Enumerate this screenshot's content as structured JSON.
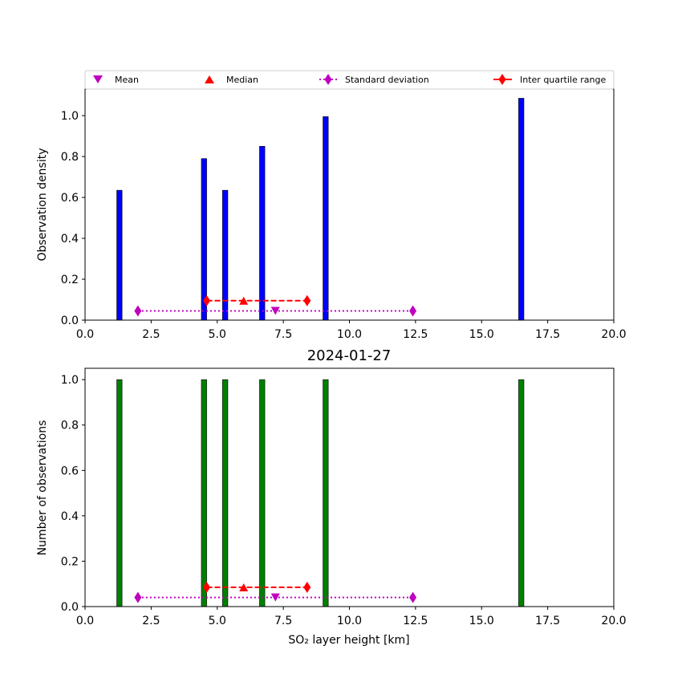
{
  "legend": {
    "mean_label": "Mean",
    "median_label": "Median",
    "std_label": "Standard deviation",
    "iqr_label": "Inter quartile range"
  },
  "colors": {
    "density_bars": "#0000ff",
    "count_bars": "#008000",
    "mean": "#bf00bf",
    "median": "#ff0000",
    "std": "#bf00bf",
    "iqr": "#ff0000"
  },
  "chart_data": [
    {
      "type": "bar",
      "title": "",
      "xlabel": "",
      "ylabel": "Observation density",
      "xlim": [
        0,
        20
      ],
      "ylim": [
        0,
        1.13
      ],
      "xticks": [
        "0.0",
        "2.5",
        "5.0",
        "7.5",
        "10.0",
        "12.5",
        "15.0",
        "17.5",
        "20.0"
      ],
      "yticks": [
        "0.0",
        "0.2",
        "0.4",
        "0.6",
        "0.8",
        "1.0"
      ],
      "bar_width": 0.2,
      "bars": [
        {
          "x": 1.3,
          "value": 0.635
        },
        {
          "x": 4.5,
          "value": 0.79
        },
        {
          "x": 5.3,
          "value": 0.635
        },
        {
          "x": 6.7,
          "value": 0.85
        },
        {
          "x": 9.1,
          "value": 0.995
        },
        {
          "x": 16.5,
          "value": 1.085
        }
      ],
      "mean": {
        "x": 7.2,
        "y": 0.045
      },
      "median": {
        "x": 6.0,
        "y": 0.095
      },
      "std_range": {
        "x": [
          2.0,
          12.4
        ],
        "y": 0.045
      },
      "iqr_range": {
        "x": [
          4.6,
          8.4
        ],
        "y": 0.095
      }
    },
    {
      "type": "bar",
      "title": "2024-01-27",
      "xlabel": "SO₂ layer height [km]",
      "ylabel": "Number of observations",
      "xlim": [
        0,
        20
      ],
      "ylim": [
        0,
        1.05
      ],
      "xticks": [
        "0.0",
        "2.5",
        "5.0",
        "7.5",
        "10.0",
        "12.5",
        "15.0",
        "17.5",
        "20.0"
      ],
      "yticks": [
        "0.0",
        "0.2",
        "0.4",
        "0.6",
        "0.8",
        "1.0"
      ],
      "bar_width": 0.2,
      "bars": [
        {
          "x": 1.3,
          "value": 1
        },
        {
          "x": 4.5,
          "value": 1
        },
        {
          "x": 5.3,
          "value": 1
        },
        {
          "x": 6.7,
          "value": 1
        },
        {
          "x": 9.1,
          "value": 1
        },
        {
          "x": 16.5,
          "value": 1
        }
      ],
      "mean": {
        "x": 7.2,
        "y": 0.04
      },
      "median": {
        "x": 6.0,
        "y": 0.085
      },
      "std_range": {
        "x": [
          2.0,
          12.4
        ],
        "y": 0.04
      },
      "iqr_range": {
        "x": [
          4.6,
          8.4
        ],
        "y": 0.085
      }
    }
  ]
}
